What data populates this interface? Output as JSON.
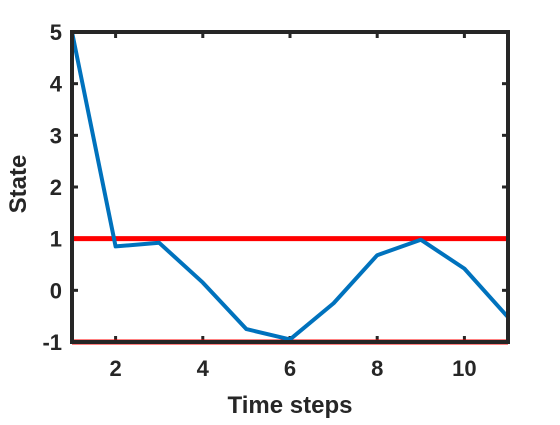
{
  "chart_data": {
    "type": "line",
    "title": "",
    "xlabel": "Time steps",
    "ylabel": "State",
    "xlim": [
      1,
      11
    ],
    "ylim": [
      -1,
      5
    ],
    "xticks": [
      2,
      4,
      6,
      8,
      10
    ],
    "yticks": [
      -1,
      0,
      1,
      2,
      3,
      4,
      5
    ],
    "grid": false,
    "series": [
      {
        "color": "#0072BD",
        "x": [
          1,
          2,
          3,
          4,
          5,
          6,
          7,
          8,
          9,
          10,
          11
        ],
        "values": [
          5,
          0.85,
          0.92,
          0.15,
          -0.75,
          -0.95,
          -0.25,
          0.68,
          0.98,
          0.42,
          -0.52
        ]
      }
    ],
    "reference_lines": [
      {
        "y": 1,
        "color": "#FF0000"
      },
      {
        "y": -1,
        "color": "#FF0000"
      }
    ],
    "colors": {
      "axis": "#262626",
      "text": "#262626"
    }
  }
}
